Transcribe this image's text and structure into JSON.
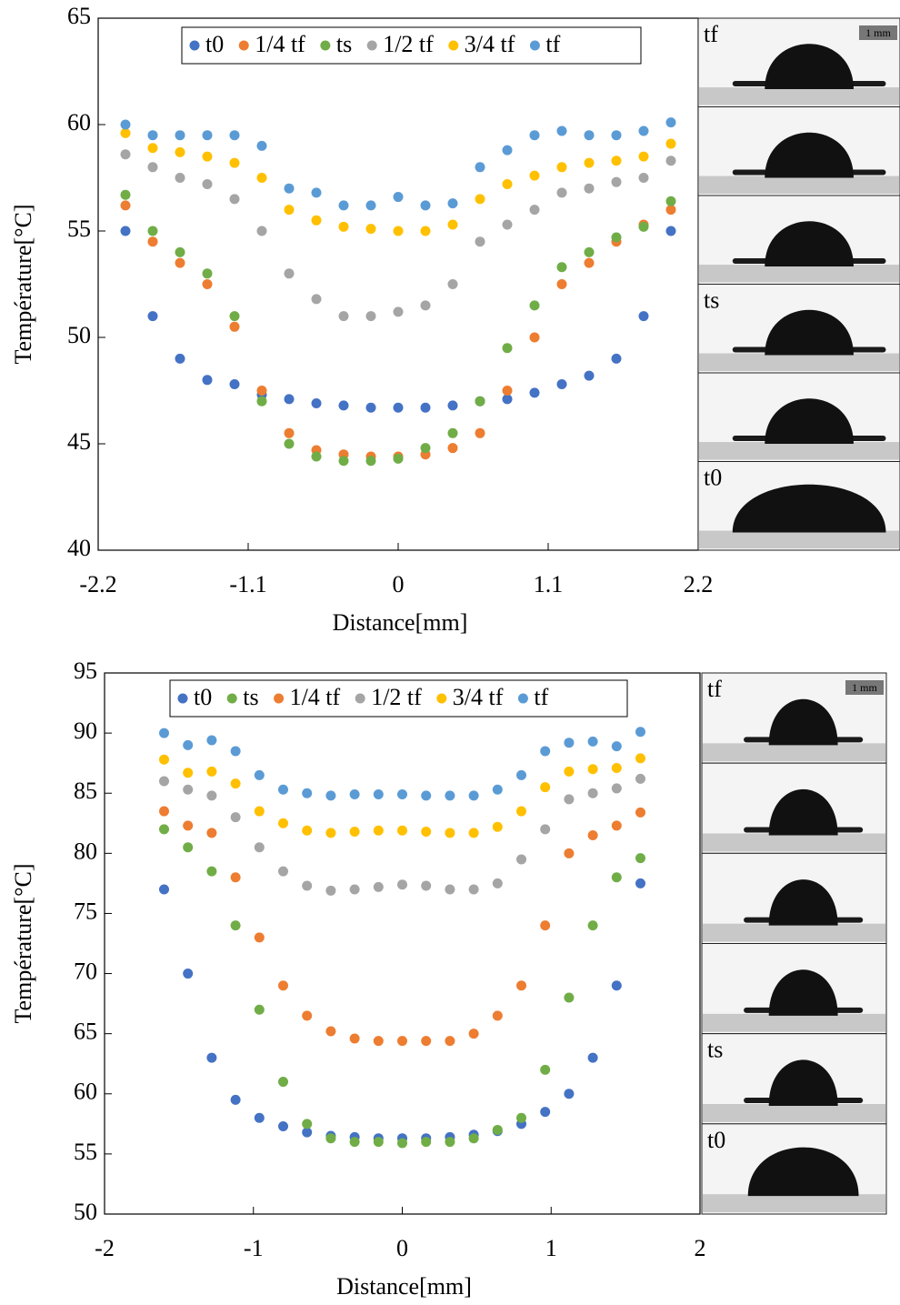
{
  "chart_data": [
    {
      "type": "scatter",
      "x_label": "Distance[mm]",
      "y_label": "Température[°C]",
      "xlim": [
        -2.2,
        2.2
      ],
      "xticks": [
        -2.2,
        -1.1,
        0,
        1.1,
        2.2
      ],
      "ylim": [
        40,
        65
      ],
      "yticks": [
        40,
        45,
        50,
        55,
        60,
        65
      ],
      "x": [
        -2.0,
        -1.8,
        -1.6,
        -1.4,
        -1.2,
        -1.0,
        -0.8,
        -0.6,
        -0.4,
        -0.2,
        0,
        0.2,
        0.4,
        0.6,
        0.8,
        1.0,
        1.2,
        1.4,
        1.6,
        1.8,
        2.0
      ],
      "series": [
        {
          "name": "t0",
          "color": "#4472c4",
          "values": [
            55,
            51,
            49,
            48,
            47.8,
            47.3,
            47.1,
            46.9,
            46.8,
            46.7,
            46.7,
            46.7,
            46.8,
            47,
            47.1,
            47.4,
            47.8,
            48.2,
            49,
            51,
            55
          ]
        },
        {
          "name": "1/4 tf",
          "color": "#ed7d31",
          "values": [
            56.2,
            54.5,
            53.5,
            52.5,
            50.5,
            47.5,
            45.5,
            44.7,
            44.5,
            44.4,
            44.4,
            44.5,
            44.8,
            45.5,
            47.5,
            50,
            52.5,
            53.5,
            54.5,
            55.3,
            56
          ]
        },
        {
          "name": "ts",
          "color": "#70ad47",
          "values": [
            56.7,
            55,
            54,
            53,
            51,
            47,
            45,
            44.4,
            44.2,
            44.2,
            44.3,
            44.8,
            45.5,
            47,
            49.5,
            51.5,
            53.3,
            54,
            54.7,
            55.2,
            56.4
          ]
        },
        {
          "name": "1/2 tf",
          "color": "#a5a5a5",
          "values": [
            58.6,
            58,
            57.5,
            57.2,
            56.5,
            55,
            53,
            51.8,
            51,
            51,
            51.2,
            51.5,
            52.5,
            54.5,
            55.3,
            56,
            56.8,
            57,
            57.3,
            57.5,
            58.3
          ]
        },
        {
          "name": "3/4 tf",
          "color": "#ffc000",
          "values": [
            59.6,
            58.9,
            58.7,
            58.5,
            58.2,
            57.5,
            56,
            55.5,
            55.2,
            55.1,
            55,
            55,
            55.3,
            56.5,
            57.2,
            57.6,
            58,
            58.2,
            58.3,
            58.5,
            59.1
          ]
        },
        {
          "name": "tf",
          "color": "#5b9bd5",
          "values": [
            60,
            59.5,
            59.5,
            59.5,
            59.5,
            59,
            57,
            56.8,
            56.2,
            56.2,
            56.6,
            56.2,
            56.3,
            58,
            58.8,
            59.5,
            59.7,
            59.5,
            59.5,
            59.7,
            60.1
          ]
        }
      ],
      "panels": [
        "tf",
        null,
        null,
        "ts",
        null,
        "t0"
      ],
      "scale_bar": "1 mm"
    },
    {
      "type": "scatter",
      "x_label": "Distance[mm]",
      "y_label": "Température[°C]",
      "xlim": [
        -2,
        2
      ],
      "xticks": [
        -2,
        -1,
        0,
        1,
        2
      ],
      "ylim": [
        50,
        95
      ],
      "yticks": [
        50,
        55,
        60,
        65,
        70,
        75,
        80,
        85,
        90,
        95
      ],
      "x": [
        -1.6,
        -1.44,
        -1.28,
        -1.12,
        -0.96,
        -0.8,
        -0.64,
        -0.48,
        -0.32,
        -0.16,
        0,
        0.16,
        0.32,
        0.48,
        0.64,
        0.8,
        0.96,
        1.12,
        1.28,
        1.44,
        1.6
      ],
      "series": [
        {
          "name": "t0",
          "color": "#4472c4",
          "values": [
            77,
            70,
            63,
            59.5,
            58,
            57.3,
            56.8,
            56.5,
            56.4,
            56.3,
            56.3,
            56.3,
            56.4,
            56.6,
            56.9,
            57.5,
            58.5,
            60,
            63,
            69,
            77.5
          ]
        },
        {
          "name": "ts",
          "color": "#70ad47",
          "values": [
            82,
            80.5,
            78.5,
            74,
            67,
            61,
            57.5,
            56.3,
            56,
            56,
            55.9,
            56,
            56,
            56.3,
            57,
            58,
            62,
            68,
            74,
            78,
            79.6
          ]
        },
        {
          "name": "1/4 tf",
          "color": "#ed7d31",
          "values": [
            83.5,
            82.3,
            81.7,
            78,
            73,
            69,
            66.5,
            65.2,
            64.6,
            64.4,
            64.4,
            64.4,
            64.4,
            65,
            66.5,
            69,
            74,
            80,
            81.5,
            82.3,
            83.4
          ]
        },
        {
          "name": "1/2 tf",
          "color": "#a5a5a5",
          "values": [
            86,
            85.3,
            84.8,
            83,
            80.5,
            78.5,
            77.3,
            76.9,
            77,
            77.2,
            77.4,
            77.3,
            77,
            77,
            77.5,
            79.5,
            82,
            84.5,
            85,
            85.4,
            86.2
          ]
        },
        {
          "name": "3/4 tf",
          "color": "#ffc000",
          "values": [
            87.8,
            86.7,
            86.8,
            85.8,
            83.5,
            82.5,
            81.9,
            81.7,
            81.8,
            81.9,
            81.9,
            81.8,
            81.7,
            81.7,
            82.2,
            83.5,
            85.5,
            86.8,
            87,
            87.1,
            87.9
          ]
        },
        {
          "name": "tf",
          "color": "#5b9bd5",
          "values": [
            90,
            89,
            89.4,
            88.5,
            86.5,
            85.3,
            85,
            84.8,
            84.9,
            84.9,
            84.9,
            84.8,
            84.8,
            84.8,
            85.3,
            86.5,
            88.5,
            89.2,
            89.3,
            88.9,
            90.1
          ]
        }
      ],
      "panels": [
        "tf",
        null,
        null,
        null,
        "ts",
        "t0"
      ],
      "scale_bar": "1 mm"
    }
  ]
}
